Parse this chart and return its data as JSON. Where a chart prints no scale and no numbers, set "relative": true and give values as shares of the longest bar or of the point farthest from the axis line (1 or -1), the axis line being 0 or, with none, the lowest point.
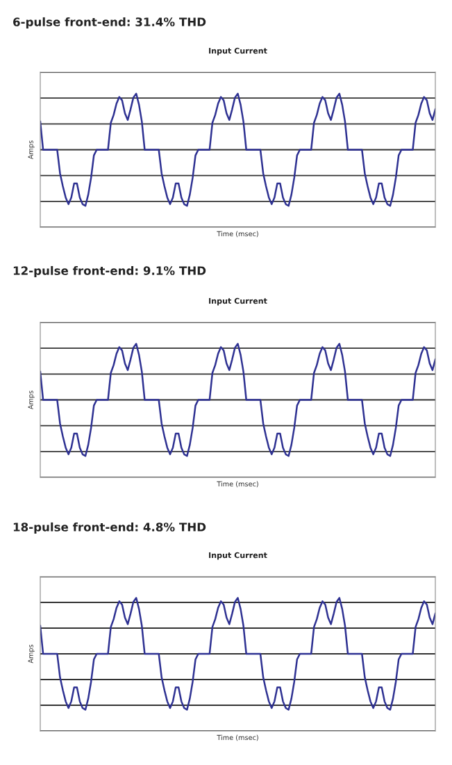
{
  "chart_data": [
    {
      "type": "line",
      "title": "6-pulse front-end: 31.4% THD",
      "subtitle": "Input Current",
      "xlabel": "Time (msec)",
      "ylabel": "Amps",
      "relative": true,
      "grid": "y",
      "tick_labels": false,
      "marker": "none",
      "line_style": "solid",
      "categories": [
        null,
        null,
        null,
        null,
        null,
        null,
        null,
        null,
        null,
        null,
        null,
        null,
        null,
        null,
        null,
        null,
        null,
        null,
        null,
        null,
        null,
        null,
        null,
        null,
        null,
        null,
        null,
        null,
        null,
        null,
        null,
        null,
        null,
        null,
        null,
        null,
        null,
        null,
        null,
        null,
        null,
        null,
        null,
        null,
        null,
        null,
        null,
        null,
        null,
        null,
        null,
        null,
        null,
        null,
        null,
        null,
        null,
        null,
        null,
        null,
        null,
        null,
        null,
        null,
        null,
        null,
        null,
        null,
        null,
        null,
        null,
        null,
        null,
        null,
        null,
        null,
        null,
        null,
        null,
        null,
        null,
        null,
        null,
        null,
        null,
        null,
        null,
        null,
        null,
        null,
        null,
        null,
        null,
        null,
        null,
        null,
        null,
        null,
        null,
        null,
        null,
        null,
        null,
        null,
        null,
        null,
        null,
        null,
        null,
        null,
        null,
        null,
        null,
        null,
        null,
        null,
        null,
        null,
        null,
        null,
        null,
        null,
        null,
        null,
        null,
        null,
        null,
        null,
        null,
        null,
        null,
        null,
        null,
        null,
        null,
        null,
        null,
        null,
        null,
        null,
        null
      ],
      "series": [
        {
          "color": "#2e3192",
          "values": [
            0.5,
            0,
            0,
            0,
            0,
            0,
            0,
            -0.42,
            -0.65,
            -0.85,
            -0.97,
            -0.85,
            -0.6,
            -0.6,
            -0.85,
            -0.97,
            -1,
            -0.8,
            -0.5,
            -0.1,
            0,
            0,
            0,
            0,
            0,
            0.48,
            0.62,
            0.82,
            0.94,
            0.88,
            0.65,
            0.53,
            0.72,
            0.93,
            1,
            0.8,
            0.5,
            0,
            0,
            0,
            0,
            0,
            0,
            -0.42,
            -0.65,
            -0.85,
            -0.97,
            -0.85,
            -0.6,
            -0.6,
            -0.85,
            -0.97,
            -1,
            -0.8,
            -0.5,
            -0.1,
            0,
            0,
            0,
            0,
            0,
            0.48,
            0.62,
            0.82,
            0.94,
            0.88,
            0.65,
            0.53,
            0.72,
            0.93,
            1,
            0.8,
            0.5,
            0,
            0,
            0,
            0,
            0,
            0,
            -0.42,
            -0.65,
            -0.85,
            -0.97,
            -0.85,
            -0.6,
            -0.6,
            -0.85,
            -0.97,
            -1,
            -0.8,
            -0.5,
            -0.1,
            0,
            0,
            0,
            0,
            0,
            0.48,
            0.62,
            0.82,
            0.94,
            0.88,
            0.65,
            0.53,
            0.72,
            0.93,
            1,
            0.8,
            0.5,
            0,
            0,
            0,
            0,
            0,
            0,
            -0.42,
            -0.65,
            -0.85,
            -0.97,
            -0.85,
            -0.6,
            -0.6,
            -0.85,
            -0.97,
            -1,
            -0.8,
            -0.5,
            -0.1,
            0,
            0,
            0,
            0,
            0,
            0.48,
            0.62,
            0.82,
            0.94,
            0.88,
            0.65,
            0.53,
            0.72
          ]
        }
      ]
    },
    {
      "type": "line",
      "title": "12-pulse front-end: 9.1% THD",
      "subtitle": "Input Current",
      "xlabel": "Time (msec)",
      "ylabel": "Amps",
      "relative": true,
      "grid": "y",
      "tick_labels": false,
      "marker": "none",
      "line_style": "solid",
      "categories": [
        null,
        null,
        null,
        null,
        null,
        null,
        null,
        null,
        null,
        null,
        null,
        null,
        null,
        null,
        null,
        null,
        null,
        null,
        null,
        null,
        null,
        null,
        null,
        null,
        null,
        null,
        null,
        null,
        null,
        null,
        null,
        null,
        null,
        null,
        null,
        null,
        null,
        null,
        null,
        null,
        null,
        null,
        null,
        null,
        null,
        null,
        null,
        null,
        null,
        null,
        null,
        null,
        null,
        null,
        null,
        null,
        null,
        null,
        null,
        null,
        null,
        null,
        null,
        null,
        null,
        null,
        null,
        null,
        null,
        null,
        null,
        null,
        null,
        null,
        null,
        null,
        null,
        null,
        null,
        null,
        null,
        null,
        null,
        null,
        null,
        null,
        null,
        null,
        null,
        null,
        null,
        null,
        null,
        null,
        null,
        null,
        null,
        null,
        null,
        null,
        null,
        null,
        null,
        null,
        null,
        null,
        null,
        null,
        null,
        null,
        null,
        null,
        null,
        null,
        null,
        null,
        null,
        null,
        null,
        null,
        null,
        null,
        null,
        null,
        null,
        null,
        null,
        null,
        null,
        null,
        null,
        null,
        null,
        null,
        null,
        null,
        null,
        null,
        null,
        null,
        null
      ],
      "series": [
        {
          "color": "#2e3192",
          "values": [
            0.5,
            0,
            0,
            0,
            0,
            0,
            0,
            -0.42,
            -0.65,
            -0.85,
            -0.97,
            -0.85,
            -0.6,
            -0.6,
            -0.85,
            -0.97,
            -1,
            -0.8,
            -0.5,
            -0.1,
            0,
            0,
            0,
            0,
            0,
            0.48,
            0.62,
            0.82,
            0.94,
            0.88,
            0.65,
            0.53,
            0.72,
            0.93,
            1,
            0.8,
            0.5,
            0,
            0,
            0,
            0,
            0,
            0,
            -0.42,
            -0.65,
            -0.85,
            -0.97,
            -0.85,
            -0.6,
            -0.6,
            -0.85,
            -0.97,
            -1,
            -0.8,
            -0.5,
            -0.1,
            0,
            0,
            0,
            0,
            0,
            0.48,
            0.62,
            0.82,
            0.94,
            0.88,
            0.65,
            0.53,
            0.72,
            0.93,
            1,
            0.8,
            0.5,
            0,
            0,
            0,
            0,
            0,
            0,
            -0.42,
            -0.65,
            -0.85,
            -0.97,
            -0.85,
            -0.6,
            -0.6,
            -0.85,
            -0.97,
            -1,
            -0.8,
            -0.5,
            -0.1,
            0,
            0,
            0,
            0,
            0,
            0.48,
            0.62,
            0.82,
            0.94,
            0.88,
            0.65,
            0.53,
            0.72,
            0.93,
            1,
            0.8,
            0.5,
            0,
            0,
            0,
            0,
            0,
            0,
            -0.42,
            -0.65,
            -0.85,
            -0.97,
            -0.85,
            -0.6,
            -0.6,
            -0.85,
            -0.97,
            -1,
            -0.8,
            -0.5,
            -0.1,
            0,
            0,
            0,
            0,
            0,
            0.48,
            0.62,
            0.82,
            0.94,
            0.88,
            0.65,
            0.53,
            0.72
          ]
        }
      ]
    },
    {
      "type": "line",
      "title": "18-pulse front-end: 4.8% THD",
      "subtitle": "Input Current",
      "xlabel": "Time (msec)",
      "ylabel": "Amps",
      "relative": true,
      "grid": "y",
      "tick_labels": false,
      "marker": "none",
      "line_style": "solid",
      "categories": [
        null,
        null,
        null,
        null,
        null,
        null,
        null,
        null,
        null,
        null,
        null,
        null,
        null,
        null,
        null,
        null,
        null,
        null,
        null,
        null,
        null,
        null,
        null,
        null,
        null,
        null,
        null,
        null,
        null,
        null,
        null,
        null,
        null,
        null,
        null,
        null,
        null,
        null,
        null,
        null,
        null,
        null,
        null,
        null,
        null,
        null,
        null,
        null,
        null,
        null,
        null,
        null,
        null,
        null,
        null,
        null,
        null,
        null,
        null,
        null,
        null,
        null,
        null,
        null,
        null,
        null,
        null,
        null,
        null,
        null,
        null,
        null,
        null,
        null,
        null,
        null,
        null,
        null,
        null,
        null,
        null,
        null,
        null,
        null,
        null,
        null,
        null,
        null,
        null,
        null,
        null,
        null,
        null,
        null,
        null,
        null,
        null,
        null,
        null,
        null,
        null,
        null,
        null,
        null,
        null,
        null,
        null,
        null,
        null,
        null,
        null,
        null,
        null,
        null,
        null,
        null,
        null,
        null,
        null,
        null,
        null,
        null,
        null,
        null,
        null,
        null,
        null,
        null,
        null,
        null,
        null,
        null,
        null,
        null,
        null,
        null,
        null,
        null,
        null,
        null,
        null
      ],
      "series": [
        {
          "color": "#2e3192",
          "values": [
            0.5,
            0,
            0,
            0,
            0,
            0,
            0,
            -0.42,
            -0.65,
            -0.85,
            -0.97,
            -0.85,
            -0.6,
            -0.6,
            -0.85,
            -0.97,
            -1,
            -0.8,
            -0.5,
            -0.1,
            0,
            0,
            0,
            0,
            0,
            0.48,
            0.62,
            0.82,
            0.94,
            0.88,
            0.65,
            0.53,
            0.72,
            0.93,
            1,
            0.8,
            0.5,
            0,
            0,
            0,
            0,
            0,
            0,
            -0.42,
            -0.65,
            -0.85,
            -0.97,
            -0.85,
            -0.6,
            -0.6,
            -0.85,
            -0.97,
            -1,
            -0.8,
            -0.5,
            -0.1,
            0,
            0,
            0,
            0,
            0,
            0.48,
            0.62,
            0.82,
            0.94,
            0.88,
            0.65,
            0.53,
            0.72,
            0.93,
            1,
            0.8,
            0.5,
            0,
            0,
            0,
            0,
            0,
            0,
            -0.42,
            -0.65,
            -0.85,
            -0.97,
            -0.85,
            -0.6,
            -0.6,
            -0.85,
            -0.97,
            -1,
            -0.8,
            -0.5,
            -0.1,
            0,
            0,
            0,
            0,
            0,
            0.48,
            0.62,
            0.82,
            0.94,
            0.88,
            0.65,
            0.53,
            0.72,
            0.93,
            1,
            0.8,
            0.5,
            0,
            0,
            0,
            0,
            0,
            0,
            -0.42,
            -0.65,
            -0.85,
            -0.97,
            -0.85,
            -0.6,
            -0.6,
            -0.85,
            -0.97,
            -1,
            -0.8,
            -0.5,
            -0.1,
            0,
            0,
            0,
            0,
            0,
            0.48,
            0.62,
            0.82,
            0.94,
            0.88,
            0.65,
            0.53,
            0.72
          ]
        }
      ]
    }
  ]
}
